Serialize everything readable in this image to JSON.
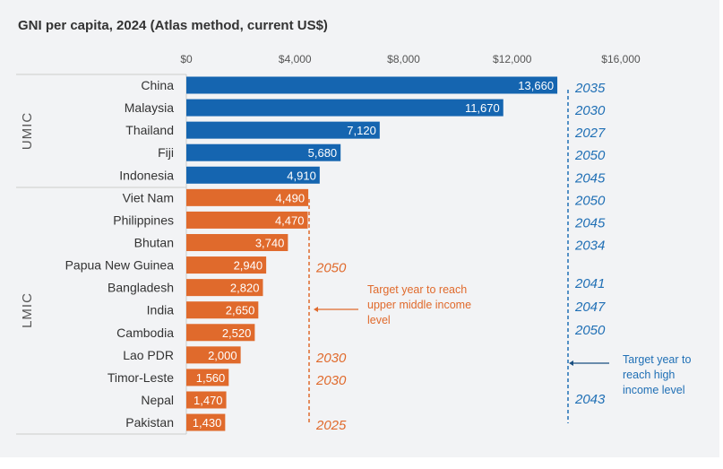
{
  "chart_data": {
    "type": "bar",
    "orientation": "horizontal",
    "title": "GNI per capita, 2024 (Atlas method, current US$)",
    "xlim": [
      0,
      16000
    ],
    "ticks": [
      0,
      4000,
      8000,
      12000,
      16000
    ],
    "tick_labels": [
      "$0",
      "$4,000",
      "$8,000",
      "$12,000",
      "$16,000"
    ],
    "groups": [
      {
        "name": "UMIC",
        "color": "#1565b0"
      },
      {
        "name": "LMIC",
        "color": "#e06a2c"
      }
    ],
    "bars": [
      {
        "country": "China",
        "group": "UMIC",
        "value": 13660,
        "label": "13,660",
        "hic_year": "2035"
      },
      {
        "country": "Malaysia",
        "group": "UMIC",
        "value": 11670,
        "label": "11,670",
        "hic_year": "2030"
      },
      {
        "country": "Thailand",
        "group": "UMIC",
        "value": 7120,
        "label": "7,120",
        "hic_year": "2027"
      },
      {
        "country": "Fiji",
        "group": "UMIC",
        "value": 5680,
        "label": "5,680",
        "hic_year": "2050"
      },
      {
        "country": "Indonesia",
        "group": "UMIC",
        "value": 4910,
        "label": "4,910",
        "hic_year": "2045"
      },
      {
        "country": "Viet Nam",
        "group": "LMIC",
        "value": 4490,
        "label": "4,490",
        "hic_year": "2050"
      },
      {
        "country": "Philippines",
        "group": "LMIC",
        "value": 4470,
        "label": "4,470",
        "hic_year": "2045"
      },
      {
        "country": "Bhutan",
        "group": "LMIC",
        "value": 3740,
        "label": "3,740",
        "hic_year": "2034"
      },
      {
        "country": "Papua New Guinea",
        "group": "LMIC",
        "value": 2940,
        "label": "2,940",
        "umic_year": "2050"
      },
      {
        "country": "Bangladesh",
        "group": "LMIC",
        "value": 2820,
        "label": "2,820",
        "hic_year": "2041"
      },
      {
        "country": "India",
        "group": "LMIC",
        "value": 2650,
        "label": "2,650",
        "hic_year": "2047"
      },
      {
        "country": "Cambodia",
        "group": "LMIC",
        "value": 2520,
        "label": "2,520",
        "hic_year": "2050"
      },
      {
        "country": "Lao PDR",
        "group": "LMIC",
        "value": 2000,
        "label": "2,000",
        "umic_year": "2030"
      },
      {
        "country": "Timor-Leste",
        "group": "LMIC",
        "value": 1560,
        "label": "1,560",
        "umic_year": "2030"
      },
      {
        "country": "Nepal",
        "group": "LMIC",
        "value": 1470,
        "label": "1,470",
        "hic_year": "2043"
      },
      {
        "country": "Pakistan",
        "group": "LMIC",
        "value": 1430,
        "label": "1,430",
        "umic_year": "2025"
      }
    ],
    "annotations": {
      "umic_target": [
        "Target year to reach",
        "upper middle income",
        "level"
      ],
      "hic_target": [
        "Target year to",
        "reach high",
        "income level"
      ]
    },
    "colors": {
      "umic_year": "#e06a2c",
      "hic_year": "#1f6fb5"
    }
  }
}
